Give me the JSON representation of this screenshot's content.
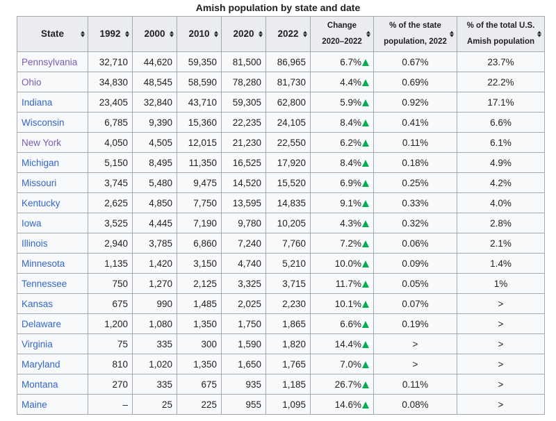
{
  "caption": "Amish population by state and date",
  "headers": {
    "state": "State",
    "y1992": "1992",
    "y2000": "2000",
    "y2010": "2010",
    "y2020": "2020",
    "y2022": "2022",
    "change_line1": "Change",
    "change_line2": "2020–2022",
    "pct_state_line1": "% of the state",
    "pct_state_line2": "population, 2022",
    "pct_total_line1": "% of the total U.S.",
    "pct_total_line2": "Amish population"
  },
  "colors": {
    "link": "#3366cc",
    "visited_link": "#795cb2",
    "increase_arrow": "#00b050",
    "header_bg": "#eaecf0",
    "cell_bg": "#f8f9fa",
    "border": "#a2a9b1"
  },
  "icons": {
    "sort": "sort-arrows-icon",
    "increase": "increase-triangle-icon"
  },
  "rows": [
    {
      "state": "Pennsylvania",
      "visited": true,
      "y1992": "32,710",
      "y2000": "44,620",
      "y2010": "59,350",
      "y2020": "81,500",
      "y2022": "86,965",
      "change": "6.7%",
      "pct_state": "0.67%",
      "pct_total": "23.7%"
    },
    {
      "state": "Ohio",
      "visited": true,
      "y1992": "34,830",
      "y2000": "48,545",
      "y2010": "58,590",
      "y2020": "78,280",
      "y2022": "81,730",
      "change": "4.4%",
      "pct_state": "0.69%",
      "pct_total": "22.2%"
    },
    {
      "state": "Indiana",
      "visited": false,
      "y1992": "23,405",
      "y2000": "32,840",
      "y2010": "43,710",
      "y2020": "59,305",
      "y2022": "62,800",
      "change": "5.9%",
      "pct_state": "0.92%",
      "pct_total": "17.1%"
    },
    {
      "state": "Wisconsin",
      "visited": false,
      "y1992": "6,785",
      "y2000": "9,390",
      "y2010": "15,360",
      "y2020": "22,235",
      "y2022": "24,105",
      "change": "8.4%",
      "pct_state": "0.41%",
      "pct_total": "6.6%"
    },
    {
      "state": "New York",
      "visited": true,
      "y1992": "4,050",
      "y2000": "4,505",
      "y2010": "12,015",
      "y2020": "21,230",
      "y2022": "22,550",
      "change": "6.2%",
      "pct_state": "0.11%",
      "pct_total": "6.1%"
    },
    {
      "state": "Michigan",
      "visited": false,
      "y1992": "5,150",
      "y2000": "8,495",
      "y2010": "11,350",
      "y2020": "16,525",
      "y2022": "17,920",
      "change": "8.4%",
      "pct_state": "0.18%",
      "pct_total": "4.9%"
    },
    {
      "state": "Missouri",
      "visited": false,
      "y1992": "3,745",
      "y2000": "5,480",
      "y2010": "9,475",
      "y2020": "14,520",
      "y2022": "15,520",
      "change": "6.9%",
      "pct_state": "0.25%",
      "pct_total": "4.2%"
    },
    {
      "state": "Kentucky",
      "visited": false,
      "y1992": "2,625",
      "y2000": "4,850",
      "y2010": "7,750",
      "y2020": "13,595",
      "y2022": "14,835",
      "change": "9.1%",
      "pct_state": "0.33%",
      "pct_total": "4.0%"
    },
    {
      "state": "Iowa",
      "visited": false,
      "y1992": "3,525",
      "y2000": "4,445",
      "y2010": "7,190",
      "y2020": "9,780",
      "y2022": "10,205",
      "change": "4.3%",
      "pct_state": "0.32%",
      "pct_total": "2.8%"
    },
    {
      "state": "Illinois",
      "visited": false,
      "y1992": "2,940",
      "y2000": "3,785",
      "y2010": "6,860",
      "y2020": "7,240",
      "y2022": "7,760",
      "change": "7.2%",
      "pct_state": "0.06%",
      "pct_total": "2.1%"
    },
    {
      "state": "Minnesota",
      "visited": false,
      "y1992": "1,135",
      "y2000": "1,420",
      "y2010": "3,150",
      "y2020": "4,740",
      "y2022": "5,210",
      "change": "10.0%",
      "pct_state": "0.09%",
      "pct_total": "1.4%"
    },
    {
      "state": "Tennessee",
      "visited": false,
      "y1992": "750",
      "y2000": "1,270",
      "y2010": "2,125",
      "y2020": "3,325",
      "y2022": "3,715",
      "change": "11.7%",
      "pct_state": "0.05%",
      "pct_total": "1%"
    },
    {
      "state": "Kansas",
      "visited": false,
      "y1992": "675",
      "y2000": "990",
      "y2010": "1,485",
      "y2020": "2,025",
      "y2022": "2,230",
      "change": "10.1%",
      "pct_state": "0.07%",
      "pct_total": ">"
    },
    {
      "state": "Delaware",
      "visited": false,
      "y1992": "1,200",
      "y2000": "1,080",
      "y2010": "1,350",
      "y2020": "1,750",
      "y2022": "1,865",
      "change": "6.6%",
      "pct_state": "0.19%",
      "pct_total": ">"
    },
    {
      "state": "Virginia",
      "visited": false,
      "y1992": "75",
      "y2000": "335",
      "y2010": "300",
      "y2020": "1,590",
      "y2022": "1,820",
      "change": "14.4%",
      "pct_state": ">",
      "pct_total": ">"
    },
    {
      "state": "Maryland",
      "visited": false,
      "y1992": "810",
      "y2000": "1,020",
      "y2010": "1,350",
      "y2020": "1,650",
      "y2022": "1,765",
      "change": "7.0%",
      "pct_state": ">",
      "pct_total": ">"
    },
    {
      "state": "Montana",
      "visited": false,
      "y1992": "270",
      "y2000": "335",
      "y2010": "675",
      "y2020": "935",
      "y2022": "1,185",
      "change": "26.7%",
      "pct_state": "0.11%",
      "pct_total": ">"
    },
    {
      "state": "Maine",
      "visited": false,
      "y1992": "–",
      "y2000": "25",
      "y2010": "225",
      "y2020": "955",
      "y2022": "1,095",
      "change": "14.6%",
      "pct_state": "0.08%",
      "pct_total": ">"
    }
  ]
}
